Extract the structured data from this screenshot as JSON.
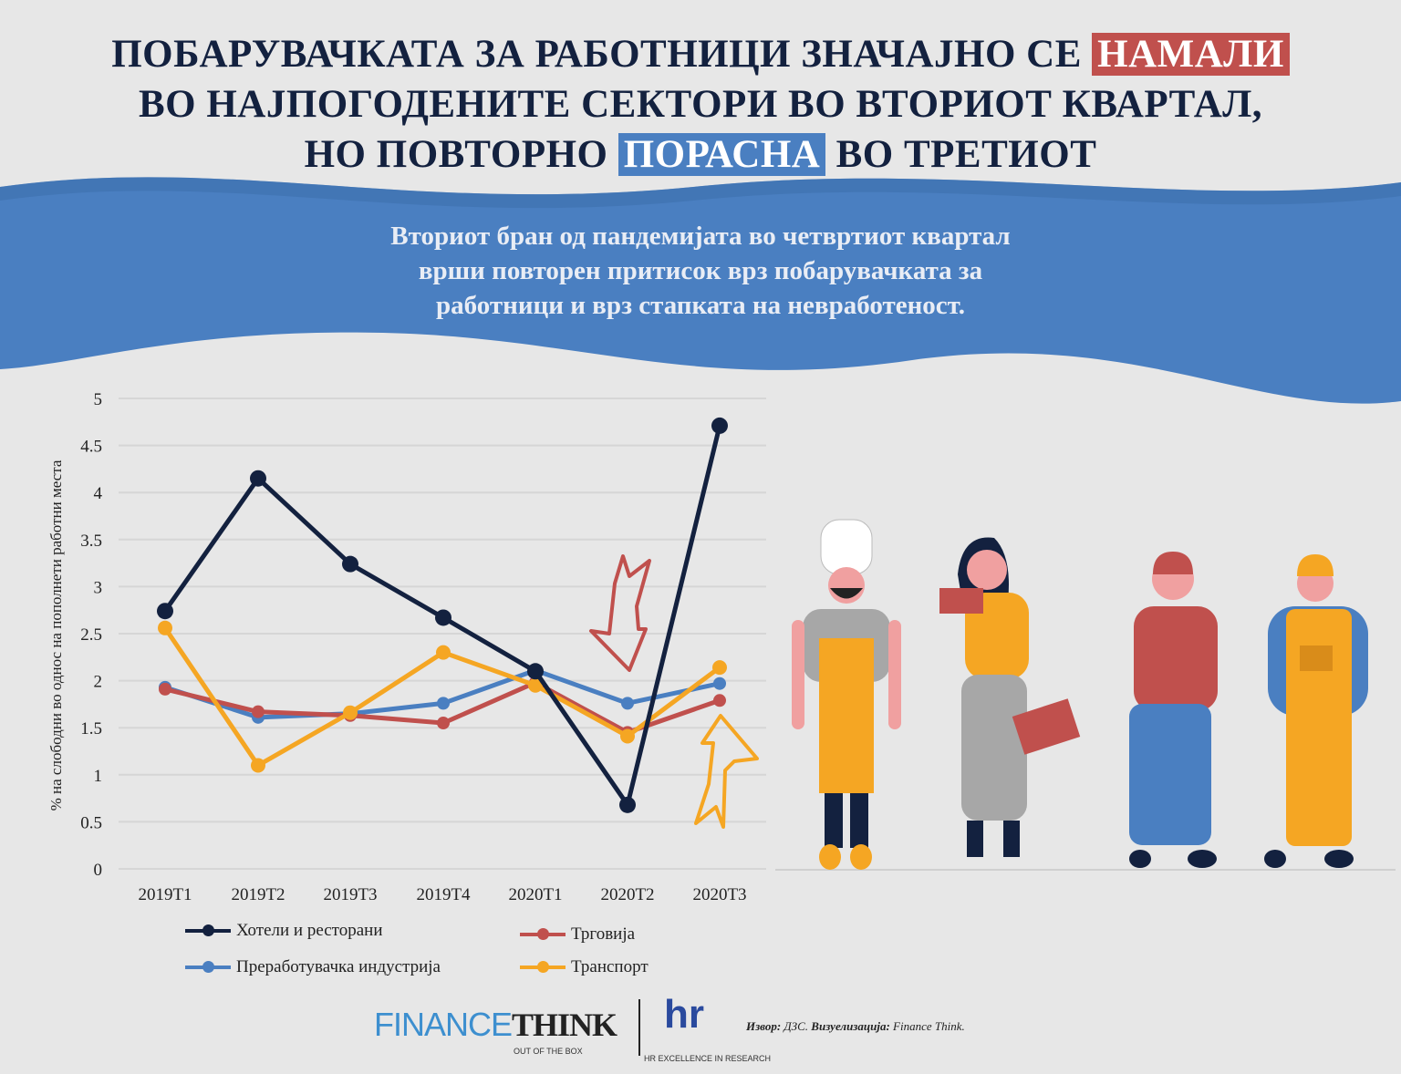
{
  "title": {
    "line1_prefix": "ПОБАРУВАЧКАТА ЗА РАБОТНИЦИ ЗНАЧАЈНО СЕ",
    "line1_highlight": "НАМАЛИ",
    "line2": "ВО НАЈПОГОДЕНИТЕ СЕКТОРИ ВО ВТОРИОТ КВАРТАЛ,",
    "line3_prefix": "НО ПОВТОРНО",
    "line3_highlight": "ПОРАСНА",
    "line3_suffix": "ВО ТРЕТИОТ"
  },
  "subtitle": {
    "line1": "Вториот бран од пандемијата во четвртиот квартал",
    "line2": "врши повторен притисок врз побарувачката за",
    "line3": "работници и врз стапката на невработеност."
  },
  "colors": {
    "navy": "#13213f",
    "blue": "#4a7fc1",
    "red": "#c0504d",
    "orange": "#f5a623"
  },
  "chart_data": {
    "type": "line",
    "title": "",
    "xlabel": "",
    "ylabel": "% на слободни во однос на пополнети работни места",
    "categories": [
      "2019Т1",
      "2019Т2",
      "2019Т3",
      "2019Т4",
      "2020Т1",
      "2020Т2",
      "2020Т3"
    ],
    "ylim": [
      0,
      5
    ],
    "yticks": [
      "0",
      "0.5",
      "1",
      "1.5",
      "2",
      "2.5",
      "3",
      "3.5",
      "4",
      "4.5",
      "5"
    ],
    "grid": true,
    "legend_position": "bottom",
    "series": [
      {
        "name": "Хотели и ресторани",
        "color": "#13213f",
        "values": [
          2.74,
          4.15,
          3.24,
          2.67,
          2.1,
          0.68,
          4.71
        ]
      },
      {
        "name": "Трговија",
        "color": "#c0504d",
        "values": [
          1.91,
          1.67,
          1.63,
          1.55,
          1.98,
          1.45,
          1.79
        ]
      },
      {
        "name": "Преработувачка индустрија",
        "color": "#4a7fc1",
        "values": [
          1.93,
          1.61,
          1.65,
          1.76,
          2.11,
          1.76,
          1.97
        ]
      },
      {
        "name": "Транспорт",
        "color": "#f5a623",
        "values": [
          2.56,
          1.1,
          1.66,
          2.3,
          1.95,
          1.41,
          2.14
        ]
      }
    ]
  },
  "footer": {
    "logo_finance": "FINANCE",
    "logo_think": "THINK",
    "logo_tagline": "OUT OF THE BOX",
    "hr_logo": "hr",
    "hr_tagline": "HR EXCELLENCE IN RESEARCH",
    "source_label": "Извор:",
    "source_value": "ДЗС.",
    "vis_label": "Визуелизација:",
    "vis_value": "Finance Think."
  }
}
